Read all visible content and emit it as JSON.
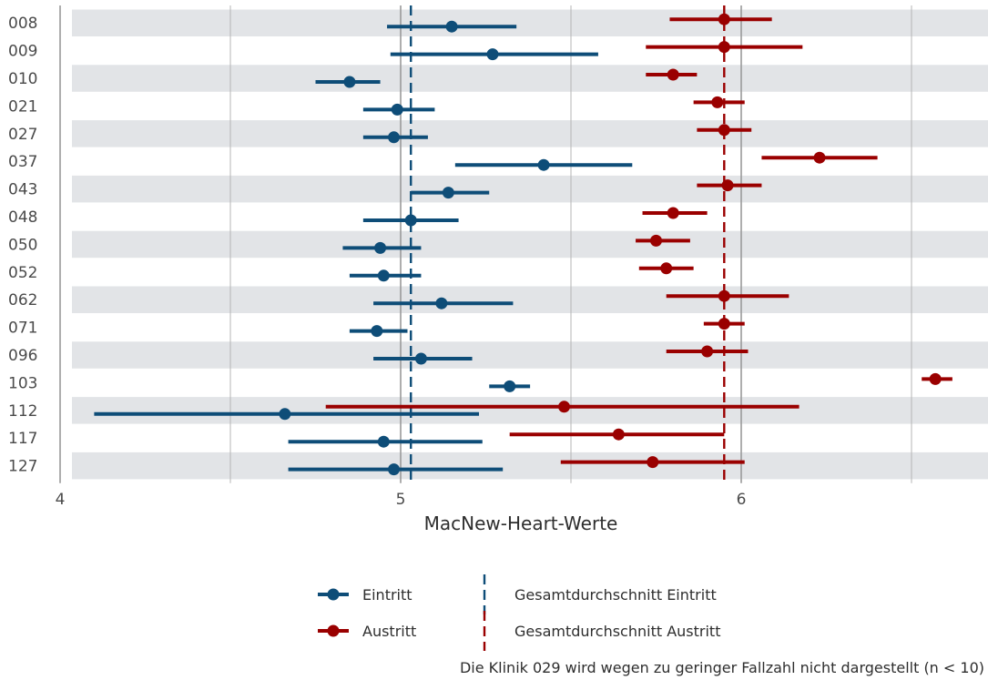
{
  "chart_data": {
    "type": "scatter",
    "subtype": "dot-interval",
    "orientation": "horizontal",
    "xlabel": "MacNew-Heart-Werte",
    "xlim": [
      3.97,
      6.73
    ],
    "xticks": [
      4,
      5,
      6
    ],
    "xticks_minor": [
      4.5,
      5.5,
      6.5
    ],
    "grid": true,
    "categories": [
      "008",
      "009",
      "010",
      "021",
      "027",
      "037",
      "043",
      "048",
      "050",
      "052",
      "062",
      "071",
      "096",
      "103",
      "112",
      "117",
      "127"
    ],
    "series": [
      {
        "name": "Eintritt",
        "color": "#0e4d78",
        "values": [
          5.15,
          5.27,
          4.85,
          4.99,
          4.98,
          5.42,
          5.14,
          5.03,
          4.94,
          4.95,
          5.12,
          4.93,
          5.06,
          5.32,
          4.66,
          4.95,
          4.98
        ],
        "lower": [
          4.96,
          4.97,
          4.75,
          4.89,
          4.89,
          5.16,
          5.03,
          4.89,
          4.83,
          4.85,
          4.92,
          4.85,
          4.92,
          5.26,
          4.1,
          4.67,
          4.67
        ],
        "upper": [
          5.34,
          5.58,
          4.94,
          5.1,
          5.08,
          5.68,
          5.26,
          5.17,
          5.06,
          5.06,
          5.33,
          5.02,
          5.21,
          5.38,
          5.23,
          5.24,
          5.3
        ]
      },
      {
        "name": "Austritt",
        "color": "#9a0000",
        "values": [
          5.95,
          5.95,
          5.8,
          5.93,
          5.95,
          6.23,
          5.96,
          5.8,
          5.75,
          5.78,
          5.95,
          5.95,
          5.9,
          6.57,
          5.48,
          5.64,
          5.74
        ],
        "lower": [
          5.79,
          5.72,
          5.72,
          5.86,
          5.87,
          6.06,
          5.87,
          5.71,
          5.69,
          5.7,
          5.78,
          5.89,
          5.78,
          6.53,
          4.78,
          5.32,
          5.47
        ],
        "upper": [
          6.09,
          6.18,
          5.87,
          6.01,
          6.03,
          6.4,
          6.06,
          5.9,
          5.85,
          5.86,
          6.14,
          6.01,
          6.02,
          6.62,
          6.17,
          5.95,
          6.01
        ]
      }
    ],
    "reference_lines": [
      {
        "name": "Gesamtdurchschnitt Eintritt",
        "value": 5.03,
        "color": "#0e4d78",
        "style": "dashed"
      },
      {
        "name": "Gesamtdurchschnitt Austritt",
        "value": 5.95,
        "color": "#9a0000",
        "style": "dashed"
      }
    ],
    "legend": {
      "placement": "bottom",
      "items": [
        {
          "label": "Eintritt",
          "kind": "point-line",
          "color": "#0e4d78"
        },
        {
          "label": "Austritt",
          "kind": "point-line",
          "color": "#9a0000"
        },
        {
          "label": "Gesamtdurchschnitt Eintritt",
          "kind": "dashed-line",
          "color": "#0e4d78"
        },
        {
          "label": "Gesamtdurchschnitt Austritt",
          "kind": "dashed-line",
          "color": "#9a0000"
        }
      ]
    },
    "band_color": "#e2e4e7",
    "grid_color": "#b4b4b4",
    "footnote": "Die Klinik 029 wird wegen zu geringer Fallzahl nicht dargestellt (n < 10)"
  }
}
